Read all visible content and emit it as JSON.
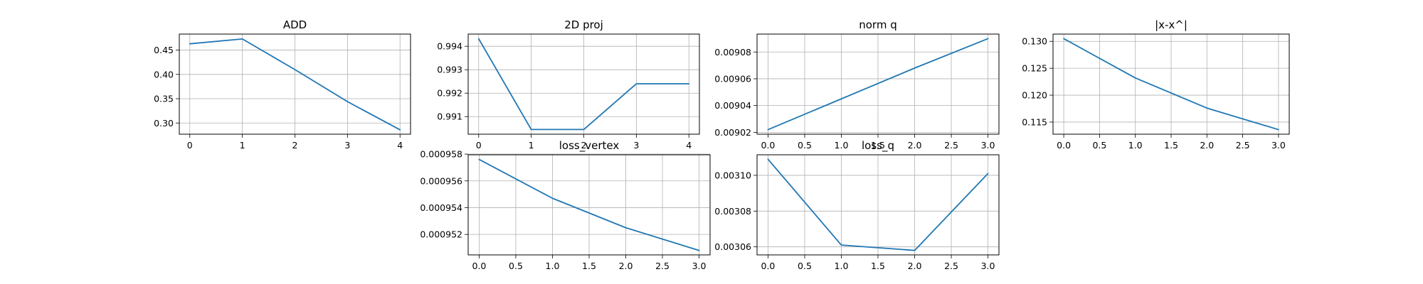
{
  "colors": {
    "series": "#1f77b4",
    "grid": "#b0b0b0",
    "frame": "#000000"
  },
  "chart_data": [
    {
      "type": "line",
      "title": "ADD",
      "xlabel": "",
      "ylabel": "",
      "grid": true,
      "x": [
        0,
        1,
        2,
        3,
        4
      ],
      "xticks": [
        0,
        1,
        2,
        3,
        4
      ],
      "xtick_labels": [
        "0",
        "1",
        "2",
        "3",
        "4"
      ],
      "xlim": [
        -0.2,
        4.2
      ],
      "series": [
        {
          "values": [
            0.463,
            0.473,
            0.41,
            0.344,
            0.286
          ]
        }
      ],
      "yticks": [
        0.3,
        0.35,
        0.4,
        0.45
      ],
      "ytick_labels": [
        "0.30",
        "0.35",
        "0.40",
        "0.45"
      ],
      "ylim": [
        0.277,
        0.483
      ]
    },
    {
      "type": "line",
      "title": "2D proj",
      "xlabel": "",
      "ylabel": "",
      "grid": true,
      "x": [
        0,
        1,
        2,
        3,
        4
      ],
      "xticks": [
        0,
        1,
        2,
        3,
        4
      ],
      "xtick_labels": [
        "0",
        "1",
        "2",
        "3",
        "4"
      ],
      "xlim": [
        -0.2,
        4.2
      ],
      "series": [
        {
          "values": [
            0.99432,
            0.99045,
            0.99045,
            0.9924,
            0.9924
          ]
        }
      ],
      "yticks": [
        0.991,
        0.992,
        0.993,
        0.994
      ],
      "ytick_labels": [
        "0.991",
        "0.992",
        "0.993",
        "0.994"
      ],
      "ylim": [
        0.99025,
        0.99452
      ]
    },
    {
      "type": "line",
      "title": "norm q",
      "xlabel": "",
      "ylabel": "",
      "grid": true,
      "x": [
        0,
        1,
        2,
        3
      ],
      "xticks": [
        0,
        0.5,
        1,
        1.5,
        2,
        2.5,
        3
      ],
      "xtick_labels": [
        "0.0",
        "0.5",
        "1.0",
        "1.5",
        "2.0",
        "2.5",
        "3.0"
      ],
      "xlim": [
        -0.15,
        3.15
      ],
      "series": [
        {
          "values": [
            0.009022,
            0.009045,
            0.009068,
            0.00909
          ]
        }
      ],
      "yticks": [
        0.00902,
        0.00904,
        0.00906,
        0.00908
      ],
      "ytick_labels": [
        "0.00902",
        "0.00904",
        "0.00906",
        "0.00908"
      ],
      "ylim": [
        0.0090186,
        0.0090934
      ]
    },
    {
      "type": "line",
      "title": "|x-x^|",
      "xlabel": "",
      "ylabel": "",
      "grid": true,
      "x": [
        0,
        1,
        2,
        3
      ],
      "xticks": [
        0,
        0.5,
        1,
        1.5,
        2,
        2.5,
        3
      ],
      "xtick_labels": [
        "0.0",
        "0.5",
        "1.0",
        "1.5",
        "2.0",
        "2.5",
        "3.0"
      ],
      "xlim": [
        -0.15,
        3.15
      ],
      "series": [
        {
          "values": [
            0.1305,
            0.1232,
            0.1176,
            0.1136
          ]
        }
      ],
      "yticks": [
        0.115,
        0.12,
        0.125,
        0.13
      ],
      "ytick_labels": [
        "0.115",
        "0.120",
        "0.125",
        "0.130"
      ],
      "ylim": [
        0.11275,
        0.13135
      ]
    },
    {
      "type": "line",
      "title": "loss_vertex",
      "xlabel": "",
      "ylabel": "",
      "grid": true,
      "x": [
        0,
        1,
        2,
        3
      ],
      "xticks": [
        0,
        0.5,
        1,
        1.5,
        2,
        2.5,
        3
      ],
      "xtick_labels": [
        "0.0",
        "0.5",
        "1.0",
        "1.5",
        "2.0",
        "2.5",
        "3.0"
      ],
      "xlim": [
        -0.15,
        3.15
      ],
      "series": [
        {
          "values": [
            0.0009576,
            0.0009547,
            0.0009525,
            0.0009508
          ]
        }
      ],
      "yticks": [
        0.000952,
        0.000954,
        0.000956,
        0.000958
      ],
      "ytick_labels": [
        "0.000952",
        "0.000954",
        "0.000956",
        "0.000958"
      ],
      "ylim": [
        0.00095047,
        0.00095795
      ]
    },
    {
      "type": "line",
      "title": "loss_q",
      "xlabel": "",
      "ylabel": "",
      "grid": true,
      "x": [
        0,
        1,
        2,
        3
      ],
      "xticks": [
        0,
        0.5,
        1,
        1.5,
        2,
        2.5,
        3
      ],
      "xtick_labels": [
        "0.0",
        "0.5",
        "1.0",
        "1.5",
        "2.0",
        "2.5",
        "3.0"
      ],
      "xlim": [
        -0.15,
        3.15
      ],
      "series": [
        {
          "values": [
            0.003109,
            0.003061,
            0.003058,
            0.003101
          ]
        }
      ],
      "yticks": [
        0.00306,
        0.00308,
        0.0031
      ],
      "ytick_labels": [
        "0.00306",
        "0.00308",
        "0.00310"
      ],
      "ylim": [
        0.0030555,
        0.0031115
      ]
    }
  ]
}
